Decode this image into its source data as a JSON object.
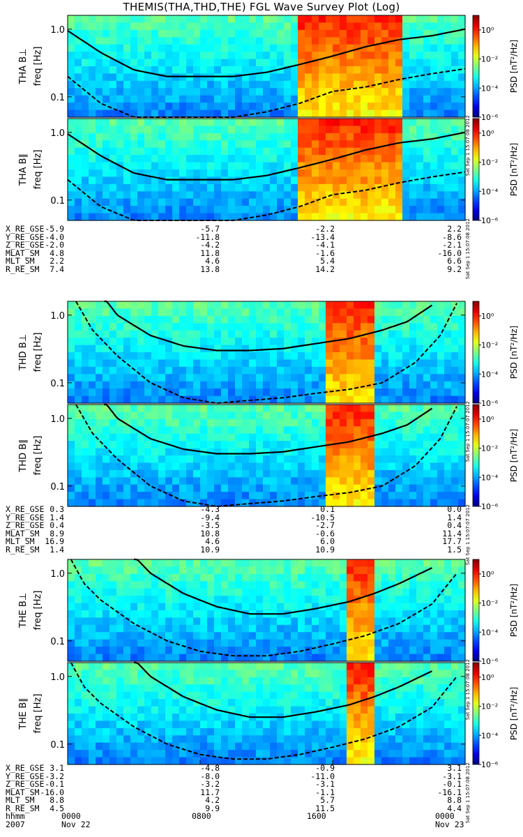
{
  "title": "THEMIS(THA,THD,THE) FGL Wave Survey Plot (Log)",
  "colorbar": {
    "label": "PSD [nT²/Hz]",
    "tick_labels": [
      "10⁰",
      "10⁻²",
      "10⁻⁴",
      "10⁻⁶"
    ],
    "exponents": [
      0,
      -2,
      -4,
      -6
    ]
  },
  "chart_data": {
    "type": "heatmap",
    "xlabel": "hhmm",
    "x_ticks": [
      "0000",
      "0800",
      "1600",
      "0000"
    ],
    "x_hours": [
      0,
      8,
      16,
      24
    ],
    "date_row": [
      "2007",
      "Nov 22",
      "Nov 23"
    ],
    "ylabel": "freq [Hz]",
    "yscale": "log",
    "ylim": [
      0.05,
      1.6
    ],
    "y_ticks": [
      {
        "value": 1.0,
        "label": "1.0"
      },
      {
        "value": 0.1,
        "label": "0.1"
      }
    ],
    "zlim_log10": [
      -6,
      1
    ],
    "panels": [
      {
        "probe": "THA",
        "label": "THA B⊥",
        "component": "perp",
        "stamp": "Sat Sep 1 15:07:08 2012",
        "gyro_solid": [
          [
            0,
            0.95
          ],
          [
            2,
            0.45
          ],
          [
            4,
            0.25
          ],
          [
            6,
            0.2
          ],
          [
            8,
            0.2
          ],
          [
            10,
            0.2
          ],
          [
            12,
            0.23
          ],
          [
            14,
            0.3
          ],
          [
            16,
            0.4
          ],
          [
            18,
            0.55
          ],
          [
            20,
            0.7
          ],
          [
            22,
            0.8
          ],
          [
            24,
            1.0
          ]
        ],
        "gyro_dashed": [
          [
            0,
            0.2
          ],
          [
            2,
            0.08
          ],
          [
            4,
            0.05
          ],
          [
            6,
            0.04
          ],
          [
            8,
            0.04
          ],
          [
            10,
            0.05
          ],
          [
            12,
            0.06
          ],
          [
            14,
            0.08
          ],
          [
            16,
            0.12
          ],
          [
            18,
            0.14
          ],
          [
            20,
            0.18
          ],
          [
            22,
            0.22
          ],
          [
            24,
            0.26
          ]
        ],
        "activity_hours": [
          [
            14,
            20
          ]
        ]
      },
      {
        "probe": "THA",
        "label": "THA B∥",
        "component": "para",
        "stamp": "Sat Sep 1 15:07:08 2012",
        "gyro_solid": [
          [
            0,
            0.95
          ],
          [
            2,
            0.45
          ],
          [
            4,
            0.25
          ],
          [
            6,
            0.2
          ],
          [
            8,
            0.2
          ],
          [
            10,
            0.2
          ],
          [
            12,
            0.23
          ],
          [
            14,
            0.3
          ],
          [
            16,
            0.4
          ],
          [
            18,
            0.55
          ],
          [
            20,
            0.7
          ],
          [
            22,
            0.8
          ],
          [
            24,
            1.0
          ]
        ],
        "gyro_dashed": [
          [
            0,
            0.2
          ],
          [
            2,
            0.08
          ],
          [
            4,
            0.05
          ],
          [
            6,
            0.04
          ],
          [
            8,
            0.04
          ],
          [
            10,
            0.05
          ],
          [
            12,
            0.06
          ],
          [
            14,
            0.08
          ],
          [
            16,
            0.12
          ],
          [
            18,
            0.14
          ],
          [
            20,
            0.18
          ],
          [
            22,
            0.22
          ],
          [
            24,
            0.26
          ]
        ],
        "activity_hours": [
          [
            14,
            20
          ]
        ]
      },
      {
        "probe": "THD",
        "label": "THD B⊥",
        "component": "perp",
        "stamp": "Sat Sep 1 15:07:07 2012",
        "gyro_solid": [
          [
            2.2,
            1.8
          ],
          [
            3,
            1.0
          ],
          [
            5,
            0.5
          ],
          [
            7,
            0.35
          ],
          [
            9,
            0.3
          ],
          [
            11,
            0.3
          ],
          [
            13,
            0.32
          ],
          [
            15,
            0.38
          ],
          [
            17,
            0.45
          ],
          [
            19,
            0.6
          ],
          [
            20.5,
            0.8
          ],
          [
            22,
            1.4
          ]
        ],
        "gyro_dashed": [
          [
            0.5,
            1.6
          ],
          [
            1.5,
            0.6
          ],
          [
            3,
            0.25
          ],
          [
            5,
            0.1
          ],
          [
            7,
            0.06
          ],
          [
            9,
            0.05
          ],
          [
            11,
            0.055
          ],
          [
            13,
            0.06
          ],
          [
            15,
            0.07
          ],
          [
            17,
            0.08
          ],
          [
            19,
            0.1
          ],
          [
            21,
            0.2
          ],
          [
            22.5,
            0.5
          ],
          [
            23.5,
            1.5
          ]
        ],
        "activity_hours": [
          [
            15.5,
            18.5
          ]
        ]
      },
      {
        "probe": "THD",
        "label": "THD B∥",
        "component": "para",
        "stamp": "Sat Sep 1 15:07:07 2012",
        "gyro_solid": [
          [
            2.2,
            1.8
          ],
          [
            3,
            1.0
          ],
          [
            5,
            0.5
          ],
          [
            7,
            0.35
          ],
          [
            9,
            0.3
          ],
          [
            11,
            0.3
          ],
          [
            13,
            0.32
          ],
          [
            15,
            0.38
          ],
          [
            17,
            0.45
          ],
          [
            19,
            0.6
          ],
          [
            20.5,
            0.8
          ],
          [
            22,
            1.4
          ]
        ],
        "gyro_dashed": [
          [
            0.5,
            1.6
          ],
          [
            1.5,
            0.6
          ],
          [
            3,
            0.25
          ],
          [
            5,
            0.1
          ],
          [
            7,
            0.06
          ],
          [
            9,
            0.05
          ],
          [
            11,
            0.055
          ],
          [
            13,
            0.06
          ],
          [
            15,
            0.07
          ],
          [
            17,
            0.08
          ],
          [
            19,
            0.1
          ],
          [
            21,
            0.2
          ],
          [
            22.5,
            0.5
          ],
          [
            23.5,
            1.5
          ]
        ],
        "activity_hours": [
          [
            15.5,
            18.5
          ]
        ]
      },
      {
        "probe": "THE",
        "label": "THE B⊥",
        "component": "perp",
        "stamp": "Sat Sep 1 15:07:08 2012",
        "gyro_solid": [
          [
            4,
            1.8
          ],
          [
            5,
            1.0
          ],
          [
            7,
            0.5
          ],
          [
            9,
            0.32
          ],
          [
            11,
            0.25
          ],
          [
            13,
            0.25
          ],
          [
            15,
            0.3
          ],
          [
            17,
            0.38
          ],
          [
            18.5,
            0.5
          ],
          [
            20,
            0.7
          ],
          [
            22,
            1.2
          ]
        ],
        "gyro_dashed": [
          [
            0.2,
            1.6
          ],
          [
            1,
            0.7
          ],
          [
            2,
            0.4
          ],
          [
            4,
            0.18
          ],
          [
            6,
            0.1
          ],
          [
            8,
            0.07
          ],
          [
            10,
            0.06
          ],
          [
            12,
            0.06
          ],
          [
            14,
            0.07
          ],
          [
            16,
            0.09
          ],
          [
            18,
            0.12
          ],
          [
            20,
            0.18
          ],
          [
            22,
            0.35
          ],
          [
            23.5,
            1.0
          ]
        ],
        "activity_hours": [
          [
            17,
            18.5
          ]
        ]
      },
      {
        "probe": "THE",
        "label": "THE B∥",
        "component": "para",
        "stamp": "Sat Sep 1 15:07:08 2012",
        "gyro_solid": [
          [
            4,
            1.8
          ],
          [
            5,
            1.0
          ],
          [
            7,
            0.5
          ],
          [
            9,
            0.32
          ],
          [
            11,
            0.25
          ],
          [
            13,
            0.25
          ],
          [
            15,
            0.3
          ],
          [
            17,
            0.38
          ],
          [
            18.5,
            0.5
          ],
          [
            20,
            0.7
          ],
          [
            22,
            1.2
          ]
        ],
        "gyro_dashed": [
          [
            0.2,
            1.6
          ],
          [
            1,
            0.7
          ],
          [
            2,
            0.4
          ],
          [
            4,
            0.18
          ],
          [
            6,
            0.1
          ],
          [
            8,
            0.07
          ],
          [
            10,
            0.06
          ],
          [
            12,
            0.06
          ],
          [
            14,
            0.07
          ],
          [
            16,
            0.09
          ],
          [
            18,
            0.12
          ],
          [
            20,
            0.18
          ],
          [
            22,
            0.35
          ],
          [
            23.5,
            1.0
          ]
        ],
        "activity_hours": [
          [
            17,
            18.5
          ]
        ]
      }
    ]
  },
  "ephemeris": [
    {
      "probe": "THA",
      "rows": [
        {
          "label": "X_RE_GSE",
          "values": [
            "-5.9",
            "-5.7",
            "-2.2",
            "2.2"
          ]
        },
        {
          "label": "Y_RE_GSE",
          "values": [
            "-4.0",
            "-11.8",
            "-13.4",
            "-8.6"
          ]
        },
        {
          "label": "Z_RE_GSE",
          "values": [
            "-2.0",
            "-4.2",
            "-4.1",
            "-2.1"
          ]
        },
        {
          "label": "MLAT_SM",
          "values": [
            "4.8",
            "11.8",
            "-1.6",
            "-16.0"
          ]
        },
        {
          "label": "MLT_SM",
          "values": [
            "2.2",
            "4.6",
            "5.4",
            "6.6"
          ]
        },
        {
          "label": "R_RE_SM",
          "values": [
            "7.4",
            "13.8",
            "14.2",
            "9.2"
          ]
        }
      ]
    },
    {
      "probe": "THD",
      "rows": [
        {
          "label": "X_RE_GSE",
          "values": [
            "0.3",
            "-4.3",
            "0.1",
            "0.0"
          ]
        },
        {
          "label": "Y_RE_GSE",
          "values": [
            "1.4",
            "-9.4",
            "-10.5",
            "1.4"
          ]
        },
        {
          "label": "Z_RE_GSE",
          "values": [
            "0.4",
            "-3.5",
            "-2.7",
            "0.4"
          ]
        },
        {
          "label": "MLAT_SM",
          "values": [
            "8.9",
            "10.8",
            "-0.6",
            "11.4"
          ]
        },
        {
          "label": "MLT_SM",
          "values": [
            "16.9",
            "4.6",
            "6.0",
            "17.7"
          ]
        },
        {
          "label": "R_RE_SM",
          "values": [
            "1.4",
            "10.9",
            "10.9",
            "1.5"
          ]
        }
      ]
    },
    {
      "probe": "THE",
      "rows": [
        {
          "label": "X_RE_GSE",
          "values": [
            "3.1",
            "-4.8",
            "-0.9",
            "3.1"
          ]
        },
        {
          "label": "Y_RE_GSE",
          "values": [
            "-3.2",
            "-8.0",
            "-11.0",
            "-3.1"
          ]
        },
        {
          "label": "Z_RE_GSE",
          "values": [
            "-0.1",
            "-3.2",
            "-3.1",
            "-0.1"
          ]
        },
        {
          "label": "MLAT_SM",
          "values": [
            "-16.0",
            "11.7",
            "-1.1",
            "-16.1"
          ]
        },
        {
          "label": "MLT_SM",
          "values": [
            "8.8",
            "4.2",
            "5.7",
            "8.8"
          ]
        },
        {
          "label": "R_RE_SM",
          "values": [
            "4.5",
            "9.9",
            "11.5",
            "4.4"
          ]
        }
      ]
    }
  ]
}
